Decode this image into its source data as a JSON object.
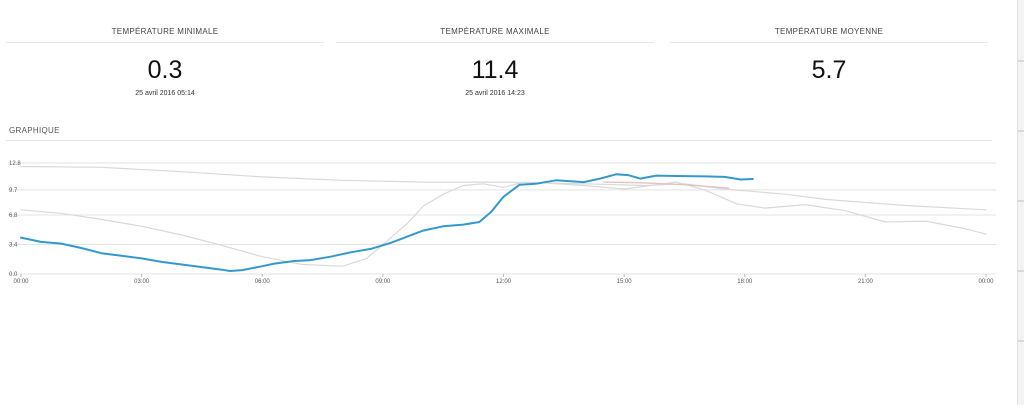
{
  "stats": [
    {
      "label": "TEMPÉRATURE MINIMALE",
      "value": "0.3",
      "date": "25 avril 2016 05:14"
    },
    {
      "label": "TEMPÉRATURE MAXIMALE",
      "value": "11.4",
      "date": "25 avril 2016 14:23"
    },
    {
      "label": "TEMPÉRATURE MOYENNE",
      "value": "5.7",
      "date": ""
    }
  ],
  "section_title": "GRAPHIQUE",
  "colors": {
    "main_series": "#3399cc",
    "ghost_series": "#d9d9d9",
    "ghost_series_pink": "#e0c4c4",
    "grid": "#e3e3e3"
  },
  "chart_data": {
    "type": "line",
    "ylim": [
      0,
      12.8
    ],
    "yticks": [
      "0.0",
      "3.4",
      "6.8",
      "9.7",
      "12.8"
    ],
    "ytick_values": [
      0,
      3.4,
      6.8,
      9.7,
      12.8
    ],
    "xlim": [
      0,
      24
    ],
    "xticks": [
      "00:00",
      "03:00",
      "06:00",
      "09:00",
      "12:00",
      "15:00",
      "18:00",
      "21:00",
      "00:00"
    ],
    "xtick_values": [
      0,
      3,
      6,
      9,
      12,
      15,
      18,
      21,
      24
    ],
    "series": [
      {
        "values": [
          [
            0,
            4.2
          ],
          [
            0.5,
            3.7
          ],
          [
            1,
            3.5
          ],
          [
            1.5,
            3.0
          ],
          [
            2,
            2.4
          ],
          [
            2.5,
            2.1
          ],
          [
            3,
            1.8
          ],
          [
            3.5,
            1.4
          ],
          [
            4,
            1.1
          ],
          [
            4.5,
            0.8
          ],
          [
            5,
            0.5
          ],
          [
            5.2,
            0.35
          ],
          [
            5.5,
            0.45
          ],
          [
            6,
            0.9
          ],
          [
            6.3,
            1.2
          ],
          [
            6.8,
            1.5
          ],
          [
            7.2,
            1.6
          ],
          [
            7.7,
            2.0
          ],
          [
            8.2,
            2.5
          ],
          [
            8.7,
            2.9
          ],
          [
            9.2,
            3.6
          ],
          [
            9.6,
            4.3
          ],
          [
            10,
            5.0
          ],
          [
            10.5,
            5.5
          ],
          [
            11,
            5.7
          ],
          [
            11.4,
            6.0
          ],
          [
            11.7,
            7.2
          ],
          [
            12,
            8.9
          ],
          [
            12.4,
            10.3
          ],
          [
            12.8,
            10.4
          ],
          [
            13.3,
            10.8
          ],
          [
            14,
            10.6
          ],
          [
            14.4,
            11.0
          ],
          [
            14.8,
            11.5
          ],
          [
            15.1,
            11.4
          ],
          [
            15.4,
            11.0
          ],
          [
            15.8,
            11.35
          ],
          [
            16.3,
            11.3
          ],
          [
            17,
            11.25
          ],
          [
            17.5,
            11.2
          ],
          [
            17.9,
            10.9
          ],
          [
            18.2,
            10.95
          ]
        ]
      },
      {
        "values": [
          [
            0,
            12.4
          ],
          [
            2,
            12.3
          ],
          [
            4,
            11.8
          ],
          [
            6,
            11.2
          ],
          [
            8,
            10.8
          ],
          [
            10,
            10.6
          ],
          [
            12,
            10.6
          ],
          [
            14,
            10.4
          ],
          [
            15.5,
            10.2
          ],
          [
            16.5,
            10.4
          ],
          [
            17.5,
            9.8
          ],
          [
            19,
            9.2
          ],
          [
            20,
            8.6
          ],
          [
            22,
            7.9
          ],
          [
            24,
            7.4
          ]
        ]
      },
      {
        "values": [
          [
            0,
            7.4
          ],
          [
            1,
            7.0
          ],
          [
            2,
            6.3
          ],
          [
            3,
            5.5
          ],
          [
            4,
            4.5
          ],
          [
            5,
            3.3
          ],
          [
            6,
            2.0
          ],
          [
            7,
            1.1
          ],
          [
            8,
            0.9
          ],
          [
            8.6,
            1.8
          ],
          [
            9.2,
            4.2
          ],
          [
            9.6,
            5.8
          ],
          [
            10,
            7.8
          ],
          [
            10.5,
            9.2
          ],
          [
            11,
            10.2
          ],
          [
            11.5,
            10.4
          ],
          [
            12,
            10.0
          ],
          [
            12.5,
            10.6
          ],
          [
            13,
            10.5
          ],
          [
            14,
            10.2
          ],
          [
            15,
            9.8
          ],
          [
            15.5,
            10.1
          ],
          [
            16.3,
            10.6
          ],
          [
            17,
            9.7
          ],
          [
            17.8,
            8.1
          ],
          [
            18.5,
            7.6
          ],
          [
            19.5,
            8.0
          ],
          [
            20.5,
            7.3
          ],
          [
            21.5,
            6.0
          ],
          [
            22.5,
            6.1
          ],
          [
            23.5,
            5.2
          ],
          [
            24,
            4.6
          ]
        ]
      },
      {
        "values": [
          [
            14.5,
            10.6
          ],
          [
            15.5,
            10.5
          ],
          [
            16.5,
            10.3
          ],
          [
            17.6,
            9.9
          ]
        ]
      }
    ]
  }
}
